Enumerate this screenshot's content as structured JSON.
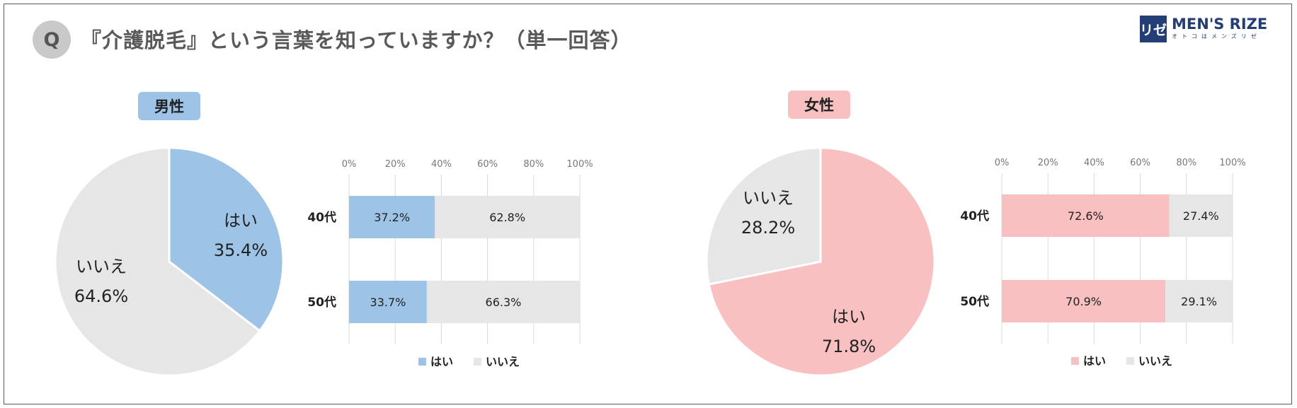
{
  "header": {
    "q_badge": "Q",
    "title": "『介護脱毛』という言葉を知っていますか？（単一回答）"
  },
  "logo": {
    "mark": "リゼ",
    "brand": "MEN'S RIZE",
    "tagline": "オトコはメンズリゼ"
  },
  "colors": {
    "male_yes": "#9dc3e6",
    "female_yes": "#f8c0c0",
    "no": "#e6e6e6"
  },
  "chart_data": [
    {
      "type": "pie",
      "title": "男性",
      "slices": [
        {
          "label": "はい",
          "value": 35.4,
          "display": "35.4%"
        },
        {
          "label": "いいえ",
          "value": 64.6,
          "display": "64.6%"
        }
      ]
    },
    {
      "type": "bar",
      "orientation": "horizontal-stacked",
      "categories": [
        "40代",
        "50代"
      ],
      "x_ticks": [
        "0%",
        "20%",
        "40%",
        "60%",
        "80%",
        "100%"
      ],
      "xlim": [
        0,
        100
      ],
      "grid": true,
      "legend": "bottom",
      "series": [
        {
          "name": "はい",
          "values": [
            37.2,
            33.7
          ],
          "labels": [
            "37.2%",
            "33.7%"
          ]
        },
        {
          "name": "いいえ",
          "values": [
            62.8,
            66.3
          ],
          "labels": [
            "62.8%",
            "66.3%"
          ]
        }
      ]
    },
    {
      "type": "pie",
      "title": "女性",
      "slices": [
        {
          "label": "はい",
          "value": 71.8,
          "display": "71.8%"
        },
        {
          "label": "いいえ",
          "value": 28.2,
          "display": "28.2%"
        }
      ]
    },
    {
      "type": "bar",
      "orientation": "horizontal-stacked",
      "categories": [
        "40代",
        "50代"
      ],
      "x_ticks": [
        "0%",
        "20%",
        "40%",
        "60%",
        "80%",
        "100%"
      ],
      "xlim": [
        0,
        100
      ],
      "grid": true,
      "legend": "bottom",
      "series": [
        {
          "name": "はい",
          "values": [
            72.6,
            70.9
          ],
          "labels": [
            "72.6%",
            "70.9%"
          ]
        },
        {
          "name": "いいえ",
          "values": [
            27.4,
            29.1
          ],
          "labels": [
            "27.4%",
            "29.1%"
          ]
        }
      ]
    }
  ]
}
